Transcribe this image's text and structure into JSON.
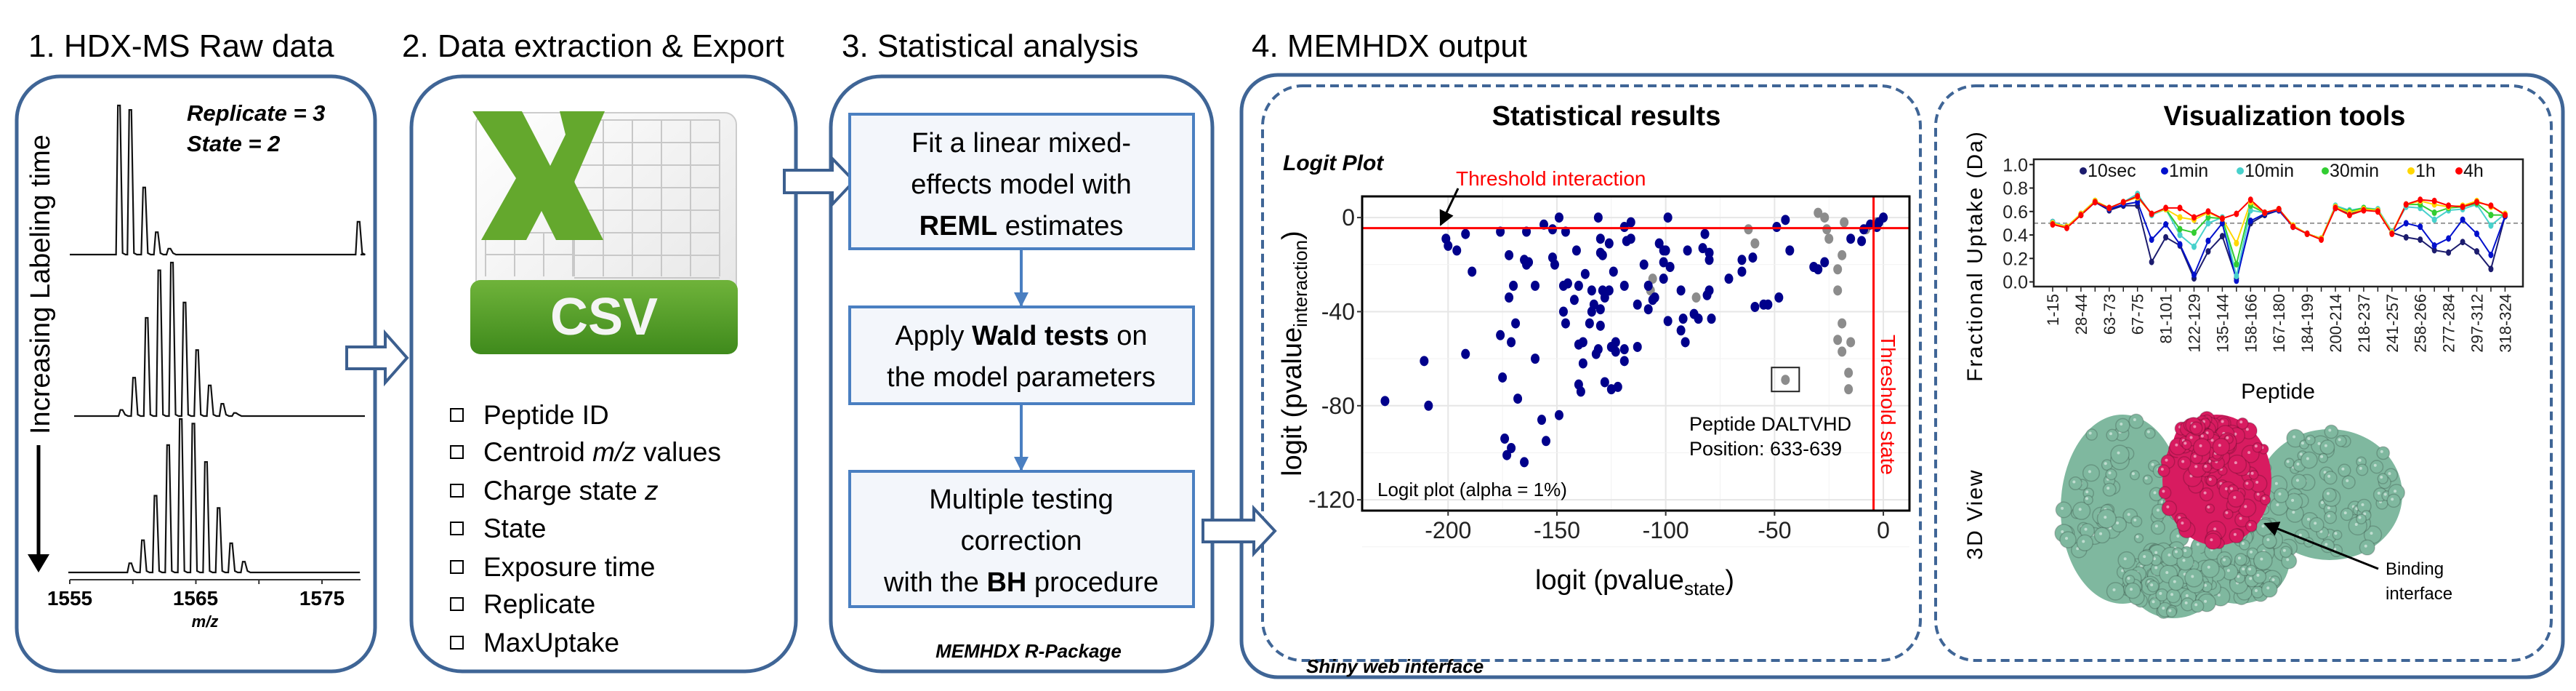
{
  "steps": [
    {
      "title": "1. HDX-MS Raw data"
    },
    {
      "title": "2. Data extraction & Export"
    },
    {
      "title": "3. Statistical analysis"
    },
    {
      "title": "4. MEMHDX output"
    }
  ],
  "raw_data": {
    "labeling_axis": "Increasing Labeling time",
    "replicate": "Replicate = 3",
    "state": "State = 2",
    "xticks": [
      "1555",
      "1565",
      "1575"
    ],
    "xlabel": "m/z",
    "spectra": [
      {
        "peaks": [
          [
            1558.9,
            1.0
          ],
          [
            1559.8,
            0.97
          ],
          [
            1560.9,
            0.45
          ],
          [
            1561.9,
            0.15
          ],
          [
            1562.9,
            0.04
          ],
          [
            1577.9,
            0.22
          ]
        ]
      },
      {
        "peaks": [
          [
            1559.1,
            0.04
          ],
          [
            1560.1,
            0.25
          ],
          [
            1561.1,
            0.64
          ],
          [
            1562.1,
            0.95
          ],
          [
            1563.1,
            1.0
          ],
          [
            1564.1,
            0.74
          ],
          [
            1565.1,
            0.43
          ],
          [
            1566.1,
            0.2
          ],
          [
            1567.1,
            0.08
          ],
          [
            1568.1,
            0.02
          ]
        ]
      },
      {
        "peaks": [
          [
            1559.8,
            0.06
          ],
          [
            1560.8,
            0.21
          ],
          [
            1561.8,
            0.5
          ],
          [
            1562.8,
            0.83
          ],
          [
            1563.8,
            1.0
          ],
          [
            1564.8,
            0.97
          ],
          [
            1565.8,
            0.72
          ],
          [
            1566.8,
            0.42
          ],
          [
            1567.8,
            0.19
          ],
          [
            1568.8,
            0.07
          ]
        ]
      }
    ]
  },
  "export": {
    "icon_label": "CSV",
    "items": [
      {
        "pre": "Peptide ID"
      },
      {
        "pre": "Centroid ",
        "it": "m/z",
        "post": " values"
      },
      {
        "pre": "Charge state ",
        "it": "z"
      },
      {
        "pre": "State"
      },
      {
        "pre": "Exposure time"
      },
      {
        "pre": "Replicate"
      },
      {
        "pre": "MaxUptake"
      }
    ]
  },
  "analysis": {
    "box1": {
      "l1": "Fit a linear mixed-",
      "l2": "effects model with",
      "bold": "REML",
      "l3": " estimates"
    },
    "box2": {
      "pre": "Apply ",
      "bold": "Wald tests",
      "post": " on",
      "l2": "the model parameters"
    },
    "box3": {
      "l1": "Multiple testing",
      "l2": "correction",
      "pre": "with the ",
      "bold": "BH",
      "post": " procedure"
    },
    "footer": "MEMHDX R-Package"
  },
  "output": {
    "footer": "Shiny web interface",
    "stats_title": "Statistical results",
    "vis_title": "Visualization tools",
    "view3d_label": "3D View",
    "binding_l1": "Binding",
    "binding_l2": "interface",
    "colors": {
      "significant": "#00008b",
      "nonsignificant": "#8c8c8c",
      "threshold": "#ff0000",
      "protein": "#7fb89f",
      "interface": "#d81b60"
    }
  },
  "chart_data": [
    {
      "type": "scatter",
      "title": "Logit Plot",
      "xlabel": "logit (pvalue",
      "xlabel_sub": "state",
      "xlabel_end": ")",
      "ylabel": "logit (pvalue",
      "ylabel_sub": "interaction",
      "ylabel_end": ")",
      "xlim": [
        -239.5,
        12
      ],
      "ylim": [
        -124.6,
        9
      ],
      "xticks": [
        -200,
        -150,
        -100,
        -50,
        0
      ],
      "yticks": [
        0,
        -40,
        -80,
        -120
      ],
      "grid": true,
      "threshold_interaction": -4.5,
      "threshold_state": -4.5,
      "threshold_interaction_label": "Threshold interaction",
      "threshold_state_label": "Threshold state",
      "annotation_l1": "Peptide DALTVHD",
      "annotation_l2": "Position: 633-639",
      "note": "Logit plot (alpha = 1%)",
      "highlight": [
        -45,
        -69
      ],
      "significant": [
        [
          -229,
          -78
        ],
        [
          -211,
          -61
        ],
        [
          -209,
          -80
        ],
        [
          -201,
          -9
        ],
        [
          -200,
          -12
        ],
        [
          -196,
          -14
        ],
        [
          -192,
          -7
        ],
        [
          -189,
          -23
        ],
        [
          -192,
          -58
        ],
        [
          -176,
          -6
        ],
        [
          -172,
          -16
        ],
        [
          -165,
          -18
        ],
        [
          -164,
          -20
        ],
        [
          -163,
          -19
        ],
        [
          -164,
          -6
        ],
        [
          -170,
          -29
        ],
        [
          -172,
          -34
        ],
        [
          -160,
          -29
        ],
        [
          -169,
          -45
        ],
        [
          -176,
          -50
        ],
        [
          -171,
          -53
        ],
        [
          -160,
          -60
        ],
        [
          -175,
          -68
        ],
        [
          -168,
          -77
        ],
        [
          -174,
          -94
        ],
        [
          -171,
          -98
        ],
        [
          -173,
          -101
        ],
        [
          -165,
          -104
        ],
        [
          -157,
          -86
        ],
        [
          -155,
          -95
        ],
        [
          -149,
          -84
        ],
        [
          -156,
          -3
        ],
        [
          -149,
          0
        ],
        [
          -152,
          -5
        ],
        [
          -146,
          -6
        ],
        [
          -152,
          -17
        ],
        [
          -151,
          -20
        ],
        [
          -147,
          -29
        ],
        [
          -145,
          -28
        ],
        [
          -147,
          -40
        ],
        [
          -146,
          -45
        ],
        [
          -142,
          -35
        ],
        [
          -140,
          -29
        ],
        [
          -141,
          -14
        ],
        [
          -137,
          -24
        ],
        [
          -131,
          0
        ],
        [
          -130,
          -9
        ],
        [
          -130,
          -15
        ],
        [
          -129,
          -16
        ],
        [
          -126,
          -11
        ],
        [
          -134,
          -31
        ],
        [
          -129,
          -31
        ],
        [
          -128,
          -34
        ],
        [
          -126,
          -31
        ],
        [
          -124,
          -23
        ],
        [
          -133,
          -37
        ],
        [
          -134,
          -40
        ],
        [
          -130,
          -39
        ],
        [
          -135,
          -45
        ],
        [
          -130,
          -46
        ],
        [
          -140,
          -54
        ],
        [
          -138,
          -53
        ],
        [
          -131,
          -56
        ],
        [
          -132,
          -58
        ],
        [
          -138,
          -62
        ],
        [
          -140,
          -71
        ],
        [
          -139,
          -74
        ],
        [
          -128,
          -70
        ],
        [
          -125,
          -73
        ],
        [
          -122,
          -72
        ],
        [
          -125,
          -55
        ],
        [
          -123,
          -53
        ],
        [
          -123,
          -57
        ],
        [
          -119,
          -56
        ],
        [
          -119,
          -61
        ],
        [
          -113,
          -55
        ],
        [
          -119,
          -29
        ],
        [
          -113,
          -37
        ],
        [
          -119,
          -4
        ],
        [
          -116,
          -2
        ],
        [
          -118,
          -10
        ],
        [
          -116,
          -9
        ],
        [
          -110,
          -20
        ],
        [
          -108,
          -29
        ],
        [
          -108,
          -39
        ],
        [
          -106,
          -35
        ],
        [
          -105,
          -34
        ],
        [
          -103,
          -11
        ],
        [
          -101,
          -14
        ],
        [
          -100,
          -14
        ],
        [
          -101,
          -19
        ],
        [
          -98,
          -21
        ],
        [
          -101,
          -26
        ],
        [
          -99,
          0
        ],
        [
          -99,
          -44
        ],
        [
          -93,
          -31
        ],
        [
          -92,
          -43
        ],
        [
          -93,
          -48
        ],
        [
          -91,
          -53
        ],
        [
          -90,
          -14
        ],
        [
          -87,
          -41
        ],
        [
          -85,
          -43
        ],
        [
          -83,
          -13
        ],
        [
          -82,
          -7
        ],
        [
          -80,
          -15
        ],
        [
          -80,
          -18
        ],
        [
          -81,
          -33
        ],
        [
          -80,
          -31
        ],
        [
          -79,
          -43
        ],
        [
          -71,
          -26
        ],
        [
          -65,
          -23
        ],
        [
          -65,
          -18
        ],
        [
          -60,
          -17
        ],
        [
          -59,
          -38
        ],
        [
          -55,
          -37
        ],
        [
          -53,
          -37
        ],
        [
          -48,
          -34
        ],
        [
          -49,
          -4
        ],
        [
          -45,
          -1
        ],
        [
          -43,
          -14
        ],
        [
          -32,
          -21
        ],
        [
          -30,
          -22
        ],
        [
          -27,
          -19
        ],
        [
          -15,
          -9
        ],
        [
          -10,
          -10
        ],
        [
          -9,
          -5
        ],
        [
          -6,
          -3
        ],
        [
          -3,
          -4
        ],
        [
          -2,
          -2
        ],
        [
          0,
          0
        ]
      ],
      "nonsignificant": [
        [
          -62,
          -5
        ],
        [
          -59,
          -11
        ],
        [
          -106,
          -26
        ],
        [
          -107,
          -31
        ],
        [
          -86,
          -34
        ],
        [
          -45,
          -69
        ],
        [
          -30,
          2
        ],
        [
          -27,
          0
        ],
        [
          -26,
          -5
        ],
        [
          -25,
          -9
        ],
        [
          -18,
          -2
        ],
        [
          -19,
          -16
        ],
        [
          -21,
          -22
        ],
        [
          -21,
          -31
        ],
        [
          -19,
          -45
        ],
        [
          -21,
          -52
        ],
        [
          -19,
          -57
        ],
        [
          -15,
          -53
        ],
        [
          -16,
          -66
        ],
        [
          -16,
          -73
        ],
        [
          -3,
          -2
        ],
        [
          -8,
          -5
        ]
      ]
    },
    {
      "type": "line",
      "ylabel": "Fractional Uptake (Da)",
      "xlabel": "Peptide",
      "ylim": [
        -0.04,
        1.045
      ],
      "yticks": [
        "0.0",
        "0.2",
        "0.4",
        "0.6",
        "0.8",
        "1.0"
      ],
      "reference_line": 0.5,
      "point_count": 33,
      "tick_labels": [
        "1-15",
        "28-44",
        "63-73",
        "67-75",
        "81-101",
        "122-129",
        "135-144",
        "158-166",
        "167-180",
        "184-199",
        "200-214",
        "218-237",
        "241-257",
        "258-266",
        "277-284",
        "297-312",
        "318-324"
      ],
      "legend": "top",
      "series": [
        {
          "name": "10sec",
          "color": "#1c1c6e",
          "values": [
            0.51,
            0.47,
            0.57,
            0.68,
            0.61,
            0.65,
            0.65,
            0.17,
            0.38,
            0.31,
            0.03,
            0.26,
            0.39,
            0.03,
            0.5,
            0.57,
            0.61,
            0.47,
            0.41,
            0.37,
            0.63,
            0.58,
            0.62,
            0.61,
            0.42,
            0.38,
            0.36,
            0.27,
            0.25,
            0.34,
            0.26,
            0.11,
            0.56
          ]
        },
        {
          "name": "1min",
          "color": "#0010cc",
          "values": [
            0.51,
            0.47,
            0.57,
            0.68,
            0.62,
            0.66,
            0.68,
            0.36,
            0.49,
            0.32,
            0.06,
            0.35,
            0.5,
            0.01,
            0.52,
            0.58,
            0.61,
            0.47,
            0.41,
            0.37,
            0.63,
            0.59,
            0.62,
            0.61,
            0.42,
            0.5,
            0.47,
            0.31,
            0.37,
            0.53,
            0.41,
            0.23,
            0.56
          ]
        },
        {
          "name": "10min",
          "color": "#48d1cc",
          "values": [
            0.51,
            0.47,
            0.58,
            0.69,
            0.63,
            0.68,
            0.75,
            0.57,
            0.62,
            0.4,
            0.3,
            0.5,
            0.55,
            0.05,
            0.61,
            0.59,
            0.62,
            0.48,
            0.41,
            0.37,
            0.65,
            0.61,
            0.63,
            0.62,
            0.43,
            0.64,
            0.63,
            0.53,
            0.61,
            0.62,
            0.66,
            0.48,
            0.58
          ]
        },
        {
          "name": "30min",
          "color": "#32cd32",
          "values": [
            0.5,
            0.47,
            0.58,
            0.69,
            0.63,
            0.68,
            0.73,
            0.58,
            0.62,
            0.45,
            0.42,
            0.55,
            0.54,
            0.15,
            0.65,
            0.59,
            0.62,
            0.48,
            0.41,
            0.37,
            0.64,
            0.6,
            0.63,
            0.61,
            0.42,
            0.66,
            0.66,
            0.59,
            0.63,
            0.64,
            0.67,
            0.57,
            0.57
          ]
        },
        {
          "name": "1h",
          "color": "#ffd700",
          "values": [
            0.5,
            0.47,
            0.58,
            0.69,
            0.63,
            0.68,
            0.72,
            0.58,
            0.62,
            0.55,
            0.53,
            0.59,
            0.54,
            0.33,
            0.68,
            0.59,
            0.62,
            0.48,
            0.41,
            0.37,
            0.64,
            0.59,
            0.62,
            0.61,
            0.42,
            0.66,
            0.69,
            0.66,
            0.64,
            0.65,
            0.69,
            0.64,
            0.58
          ]
        },
        {
          "name": "4h",
          "color": "#ff0000",
          "values": [
            0.49,
            0.46,
            0.57,
            0.68,
            0.63,
            0.68,
            0.73,
            0.58,
            0.63,
            0.63,
            0.55,
            0.6,
            0.54,
            0.58,
            0.7,
            0.59,
            0.62,
            0.47,
            0.41,
            0.36,
            0.63,
            0.57,
            0.61,
            0.6,
            0.41,
            0.66,
            0.7,
            0.69,
            0.65,
            0.64,
            0.68,
            0.65,
            0.57
          ]
        }
      ]
    }
  ]
}
